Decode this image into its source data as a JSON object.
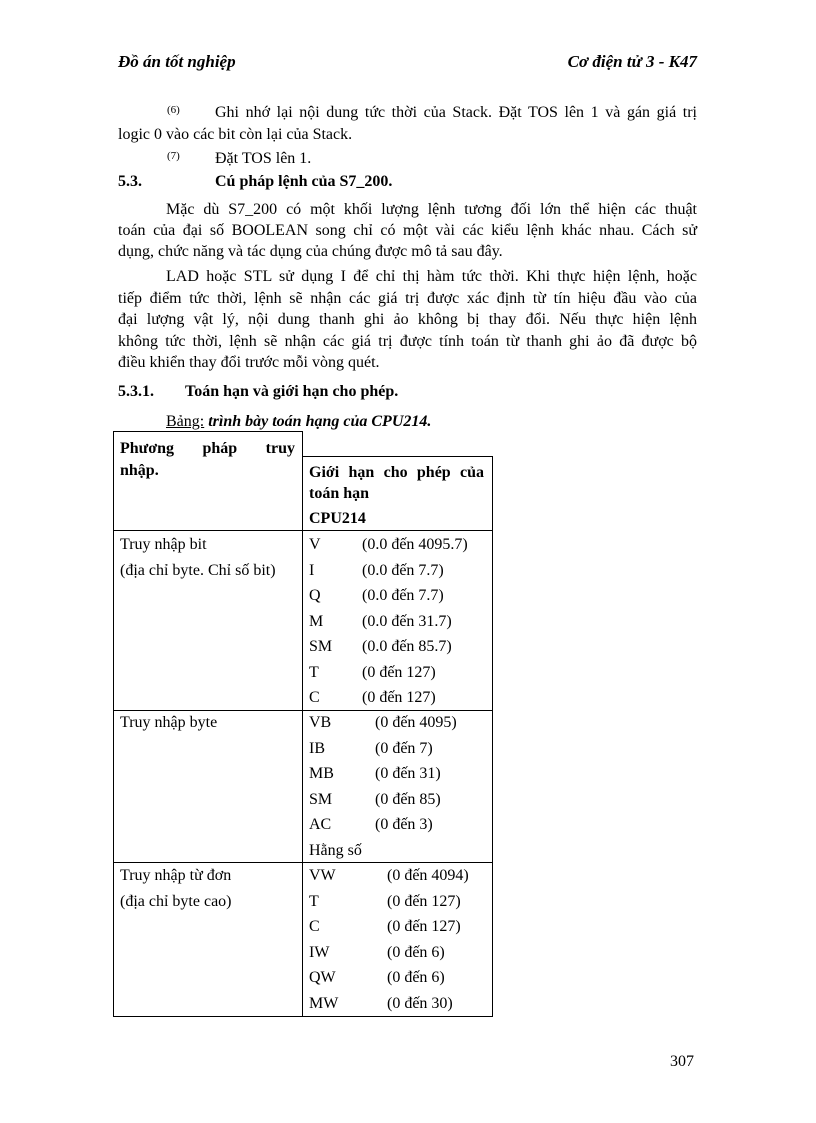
{
  "header": {
    "left": "Đồ án tốt nghiệp",
    "right": "Cơ điện tử 3 - K47"
  },
  "items": [
    {
      "num": "(6)",
      "lines": [
        "Ghi nhớ lại nội dung tức thời của Stack. Đặt TOS lên 1 và gán giá trị",
        "logic 0 vào các bit còn lại của Stack."
      ]
    },
    {
      "num": "(7)",
      "lines": [
        "Đặt TOS lên 1."
      ]
    }
  ],
  "section": {
    "num": "5.3.",
    "title": "Cú pháp  lệnh của S7_200."
  },
  "para1": [
    "Mặc dù S7_200 có một khối  lượng lệnh tương đối lớn thể hiện các thuật",
    "toán của đại số BOOLEAN  song chỉ có một vài  các kiểu lệnh khác nhau.  Cách sử",
    "dụng, chức năng và tác dụng của chúng được mô tả sau đây."
  ],
  "para2": [
    "LAD hoặc STL sử dụng I để chỉ thị hàm tức thời. Khi thực hiện lệnh, hoặc",
    "tiếp điểm tức thời, lệnh sẽ nhận các giá trị được xác định từ tín hiệu đầu vào của",
    "đại lượng vật lý, nội dung thanh ghi ảo không bị thay đổi. Nếu thực hiện lệnh",
    "không tức thời, lệnh sẽ nhận các giá trị được tính toán từ thanh ghi ảo đã được bộ",
    "điều khiển thay đổi trước mỗi vòng quét."
  ],
  "subsection": {
    "num": "5.3.1.",
    "title": "Toán hạn và giới hạn cho phép."
  },
  "caption": {
    "prefix": "Bảng:",
    "text": " trình bày toán hạng của CPU214."
  },
  "table": {
    "header_left": [
      "Phương      pháp      truy",
      "nhập."
    ],
    "header_right": [
      "Giới hạn cho phép của",
      "toán hạn",
      "CPU214"
    ],
    "rows": [
      {
        "method": [
          "Truy nhập bit",
          "(địa chỉ byte. Chỉ số bit)"
        ],
        "entries": [
          [
            "V",
            "(0.0 đến 4095.7)"
          ],
          [
            "I",
            "(0.0 đến 7.7)"
          ],
          [
            "Q",
            "(0.0 đến 7.7)"
          ],
          [
            "M",
            "(0.0 đến 31.7)"
          ],
          [
            "SM",
            "(0.0 đến 85.7)"
          ],
          [
            "T",
            "(0 đến 127)"
          ],
          [
            "C",
            "(0 đến 127)"
          ]
        ]
      },
      {
        "method": [
          "Truy nhập byte"
        ],
        "entries": [
          [
            "VB",
            "(0 đến 4095)"
          ],
          [
            "IB",
            "(0 đến 7)"
          ],
          [
            "MB",
            "(0 đến 31)"
          ],
          [
            "SM",
            "(0 đến 85)"
          ],
          [
            "AC",
            "(0 đến 3)"
          ],
          [
            "Hằng số",
            ""
          ]
        ]
      },
      {
        "method": [
          "Truy nhập từ đơn",
          "(địa chỉ byte cao)"
        ],
        "entries": [
          [
            "VW",
            "(0 đến 4094)"
          ],
          [
            "T",
            "(0 đến 127)"
          ],
          [
            "C",
            "(0 đến 127)"
          ],
          [
            "IW",
            "(0 đến 6)"
          ],
          [
            "QW",
            "(0 đến 6)"
          ],
          [
            "MW",
            "(0 đến 30)"
          ]
        ]
      }
    ]
  },
  "page_number": "307"
}
